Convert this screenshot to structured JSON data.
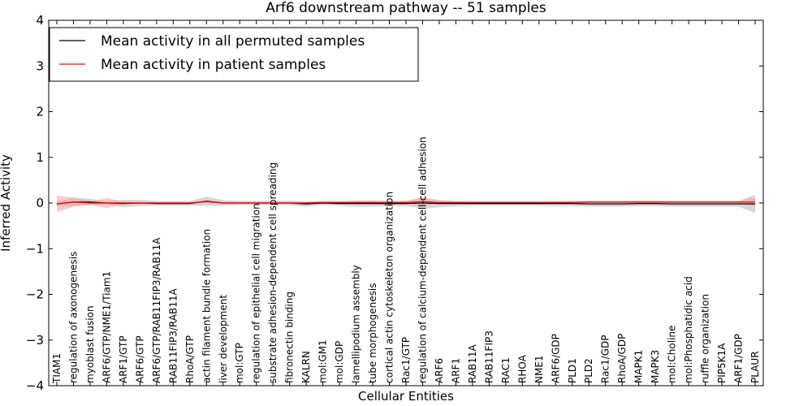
{
  "chart_data": {
    "type": "line",
    "title": "Arf6 downstream pathway -- 51 samples",
    "xlabel": "Cellular Entities",
    "ylabel": "Inferred Activity",
    "ylim": [
      -4,
      4
    ],
    "yticks": [
      "−4",
      "−3",
      "−2",
      "−1",
      "0",
      "1",
      "2",
      "3",
      "4"
    ],
    "legend_position": "top-left",
    "categories": [
      "TIAM1",
      "regulation of axonogenesis",
      "myoblast fusion",
      "ARF6/GTP/NME1/Tiam1",
      "ARF1/GTP",
      "ARF6/GTP",
      "ARF6/GTP/RAB11FIP3/RAB11A",
      "RAB11FIP3/RAB11A",
      "RhoA/GTP",
      "actin filament bundle formation",
      "liver development",
      "mol:GTP",
      "regulation of epithelial cell migration",
      "substrate adhesion-dependent cell spreading",
      "fibronectin binding",
      "KALRN",
      "mol:GM1",
      "mol:GDP",
      "lamellipodium assembly",
      "tube morphogenesis",
      "cortical actin cytoskeleton organization",
      "Rac1/GTP",
      "regulation of calcium-dependent cell-cell adhesion",
      "ARF6",
      "ARF1",
      "RAB11A",
      "RAB11FIP3",
      "RAC1",
      "RHOA",
      "NME1",
      "ARF6/GDP",
      "PLD1",
      "PLD2",
      "Rac1/GDP",
      "RhoA/GDP",
      "MAPK1",
      "MAPK3",
      "mol:Choline",
      "mol:Phosphatidic acid",
      "ruffle organization",
      "PIP5K1A",
      "ARF1/GDP",
      "PLAUR"
    ],
    "series": [
      {
        "name": "Mean activity in all permuted samples",
        "color": "#000000",
        "band_color": "#bbbbbb",
        "values": [
          -0.02,
          0.02,
          0.02,
          0.0,
          -0.01,
          0.0,
          -0.01,
          -0.01,
          -0.01,
          0.04,
          0.0,
          0.0,
          0.0,
          0.0,
          0.0,
          -0.02,
          0.0,
          -0.01,
          -0.01,
          -0.01,
          -0.01,
          -0.01,
          0.0,
          -0.01,
          -0.01,
          -0.01,
          -0.01,
          -0.01,
          -0.01,
          -0.01,
          -0.01,
          -0.01,
          -0.02,
          -0.02,
          -0.02,
          -0.01,
          -0.01,
          -0.02,
          -0.02,
          -0.02,
          -0.02,
          -0.02,
          -0.02
        ],
        "std": [
          0.05,
          0.09,
          0.07,
          0.04,
          0.08,
          0.07,
          0.05,
          0.05,
          0.05,
          0.1,
          0.06,
          0.05,
          0.04,
          0.05,
          0.05,
          0.06,
          0.05,
          0.05,
          0.07,
          0.07,
          0.06,
          0.06,
          0.12,
          0.08,
          0.06,
          0.05,
          0.05,
          0.05,
          0.05,
          0.05,
          0.06,
          0.06,
          0.06,
          0.06,
          0.06,
          0.06,
          0.06,
          0.06,
          0.06,
          0.06,
          0.06,
          0.06,
          0.2
        ]
      },
      {
        "name": "Mean activity in patient samples",
        "color": "#ff0000",
        "band_color": "#f4a0a0",
        "values": [
          -0.02,
          0.02,
          0.0,
          0.0,
          0.0,
          0.0,
          0.0,
          0.0,
          0.0,
          0.03,
          0.0,
          0.0,
          0.0,
          0.0,
          0.0,
          0.0,
          0.01,
          0.01,
          0.01,
          0.01,
          0.01,
          0.01,
          0.03,
          0.01,
          0.01,
          0.01,
          0.01,
          0.01,
          0.01,
          0.01,
          0.01,
          0.01,
          0.02,
          0.02,
          0.02,
          0.02,
          0.02,
          0.02,
          0.02,
          0.02,
          0.02,
          0.02,
          0.02
        ],
        "std": [
          0.18,
          0.1,
          0.04,
          0.11,
          0.03,
          0.02,
          0.02,
          0.02,
          0.02,
          0.03,
          0.02,
          0.02,
          0.02,
          0.02,
          0.02,
          0.02,
          0.02,
          0.02,
          0.03,
          0.03,
          0.03,
          0.03,
          0.09,
          0.03,
          0.02,
          0.02,
          0.02,
          0.02,
          0.02,
          0.02,
          0.02,
          0.02,
          0.02,
          0.02,
          0.02,
          0.02,
          0.02,
          0.02,
          0.02,
          0.02,
          0.02,
          0.02,
          0.09
        ]
      }
    ]
  }
}
